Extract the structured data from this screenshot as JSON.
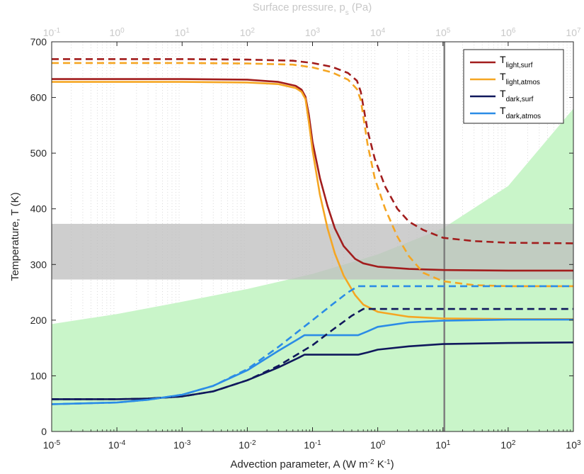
{
  "chart_data": {
    "type": "line",
    "x_axis": {
      "label_main": "Advection parameter, A (W m",
      "label_sup1": "-2",
      "label_mid": " K",
      "label_sup2": "-1",
      "label_end": ")",
      "scale": "log",
      "range": [
        1e-05,
        1000
      ],
      "ticks": [
        {
          "value": 1e-05,
          "base": "10",
          "exp": "-5"
        },
        {
          "value": 0.0001,
          "base": "10",
          "exp": "-4"
        },
        {
          "value": 0.001,
          "base": "10",
          "exp": "-3"
        },
        {
          "value": 0.01,
          "base": "10",
          "exp": "-2"
        },
        {
          "value": 0.1,
          "base": "10",
          "exp": "-1"
        },
        {
          "value": 1,
          "base": "10",
          "exp": "0"
        },
        {
          "value": 10,
          "base": "10",
          "exp": "1"
        },
        {
          "value": 100,
          "base": "10",
          "exp": "2"
        },
        {
          "value": 1000,
          "base": "10",
          "exp": "3"
        }
      ]
    },
    "x_axis_top": {
      "label_main": "Surface pressure, p",
      "label_sub": "s",
      "label_end": " (Pa)",
      "scale": "log",
      "range": [
        0.1,
        10000000
      ],
      "ticks": [
        {
          "value": 0.1,
          "base": "10",
          "exp": "-1"
        },
        {
          "value": 1,
          "base": "10",
          "exp": "0"
        },
        {
          "value": 10,
          "base": "10",
          "exp": "1"
        },
        {
          "value": 100,
          "base": "10",
          "exp": "2"
        },
        {
          "value": 1000,
          "base": "10",
          "exp": "3"
        },
        {
          "value": 10000,
          "base": "10",
          "exp": "4"
        },
        {
          "value": 100000,
          "base": "10",
          "exp": "5"
        },
        {
          "value": 1000000,
          "base": "10",
          "exp": "6"
        },
        {
          "value": 10000000,
          "base": "10",
          "exp": "7"
        }
      ]
    },
    "y_axis": {
      "label": "Temperature, T (K)",
      "range": [
        0,
        700
      ],
      "ticks": [
        0,
        100,
        200,
        300,
        400,
        500,
        600,
        700
      ]
    },
    "grid": "minor dotted vertical lines at top-axis minor ticks",
    "legend": {
      "placement": "top-right",
      "entries": [
        {
          "base": "T",
          "sub": "light,surf",
          "color": "#a21d1d"
        },
        {
          "base": "T",
          "sub": "light,atmos",
          "color": "#f5a623"
        },
        {
          "base": "T",
          "sub": "dark,surf",
          "color": "#10185c"
        },
        {
          "base": "T",
          "sub": "dark,atmos",
          "color": "#2b8ce6"
        }
      ]
    },
    "shaded_band": {
      "y_range": [
        273,
        373
      ],
      "color": "#bdbdbd"
    },
    "shaded_region": {
      "color": "#c9f5c9",
      "lower_boundary": "y = 0",
      "upper_boundary": [
        {
          "x": 1e-05,
          "y": 193
        },
        {
          "x": 0.0001,
          "y": 211
        },
        {
          "x": 0.001,
          "y": 233
        },
        {
          "x": 0.01,
          "y": 256
        },
        {
          "x": 0.1,
          "y": 283
        },
        {
          "x": 1,
          "y": 318
        },
        {
          "x": 10,
          "y": 365
        },
        {
          "x": 100,
          "y": 441
        },
        {
          "x": 1000,
          "y": 580
        }
      ]
    },
    "vertical_line": {
      "x": 10.5,
      "color": "#7f7f7f"
    },
    "series": [
      {
        "name_base": "T",
        "name_sub": "light,surf",
        "color": "#a21d1d",
        "style": "solid",
        "points": [
          {
            "x": 1e-05,
            "y": 633
          },
          {
            "x": 0.001,
            "y": 633
          },
          {
            "x": 0.01,
            "y": 632
          },
          {
            "x": 0.03,
            "y": 628
          },
          {
            "x": 0.055,
            "y": 621
          },
          {
            "x": 0.068,
            "y": 614
          },
          {
            "x": 0.078,
            "y": 601
          },
          {
            "x": 0.088,
            "y": 568
          },
          {
            "x": 0.1,
            "y": 520
          },
          {
            "x": 0.13,
            "y": 455
          },
          {
            "x": 0.17,
            "y": 405
          },
          {
            "x": 0.22,
            "y": 365
          },
          {
            "x": 0.3,
            "y": 333
          },
          {
            "x": 0.45,
            "y": 310
          },
          {
            "x": 0.6,
            "y": 302
          },
          {
            "x": 1,
            "y": 296
          },
          {
            "x": 3,
            "y": 292
          },
          {
            "x": 10,
            "y": 290
          },
          {
            "x": 100,
            "y": 289
          },
          {
            "x": 1000,
            "y": 289
          }
        ]
      },
      {
        "name_base": "T",
        "name_sub": "light,atmos",
        "color": "#f5a623",
        "style": "solid",
        "points": [
          {
            "x": 1e-05,
            "y": 628
          },
          {
            "x": 0.001,
            "y": 628
          },
          {
            "x": 0.01,
            "y": 627
          },
          {
            "x": 0.03,
            "y": 624
          },
          {
            "x": 0.055,
            "y": 617
          },
          {
            "x": 0.068,
            "y": 610
          },
          {
            "x": 0.078,
            "y": 597
          },
          {
            "x": 0.088,
            "y": 555
          },
          {
            "x": 0.1,
            "y": 505
          },
          {
            "x": 0.13,
            "y": 425
          },
          {
            "x": 0.17,
            "y": 365
          },
          {
            "x": 0.22,
            "y": 320
          },
          {
            "x": 0.3,
            "y": 280
          },
          {
            "x": 0.45,
            "y": 245
          },
          {
            "x": 0.6,
            "y": 228
          },
          {
            "x": 1,
            "y": 215
          },
          {
            "x": 3,
            "y": 206
          },
          {
            "x": 10,
            "y": 203
          },
          {
            "x": 100,
            "y": 202
          },
          {
            "x": 1000,
            "y": 202
          }
        ]
      },
      {
        "name_base": "T",
        "name_sub": "dark,surf",
        "color": "#10185c",
        "style": "solid",
        "points": [
          {
            "x": 1e-05,
            "y": 58
          },
          {
            "x": 0.0001,
            "y": 58
          },
          {
            "x": 0.0003,
            "y": 59
          },
          {
            "x": 0.001,
            "y": 63
          },
          {
            "x": 0.003,
            "y": 72
          },
          {
            "x": 0.01,
            "y": 92
          },
          {
            "x": 0.03,
            "y": 115
          },
          {
            "x": 0.06,
            "y": 132
          },
          {
            "x": 0.075,
            "y": 138
          },
          {
            "x": 0.2,
            "y": 138
          },
          {
            "x": 0.5,
            "y": 138
          },
          {
            "x": 0.7,
            "y": 142
          },
          {
            "x": 1,
            "y": 147
          },
          {
            "x": 3,
            "y": 153
          },
          {
            "x": 10,
            "y": 157
          },
          {
            "x": 100,
            "y": 159
          },
          {
            "x": 1000,
            "y": 160
          }
        ]
      },
      {
        "name_base": "T",
        "name_sub": "dark,atmos",
        "color": "#2b8ce6",
        "style": "solid",
        "points": [
          {
            "x": 1e-05,
            "y": 49
          },
          {
            "x": 0.0001,
            "y": 52
          },
          {
            "x": 0.0003,
            "y": 57
          },
          {
            "x": 0.001,
            "y": 66
          },
          {
            "x": 0.003,
            "y": 82
          },
          {
            "x": 0.01,
            "y": 110
          },
          {
            "x": 0.03,
            "y": 145
          },
          {
            "x": 0.06,
            "y": 166
          },
          {
            "x": 0.075,
            "y": 173
          },
          {
            "x": 0.2,
            "y": 173
          },
          {
            "x": 0.5,
            "y": 173
          },
          {
            "x": 0.7,
            "y": 180
          },
          {
            "x": 1,
            "y": 188
          },
          {
            "x": 3,
            "y": 196
          },
          {
            "x": 10,
            "y": 199
          },
          {
            "x": 100,
            "y": 201
          },
          {
            "x": 1000,
            "y": 201
          }
        ]
      },
      {
        "name_base": "T",
        "name_sub": "light,surf",
        "color": "#a21d1d",
        "style": "dashed",
        "points": [
          {
            "x": 1e-05,
            "y": 669
          },
          {
            "x": 0.001,
            "y": 669
          },
          {
            "x": 0.01,
            "y": 668
          },
          {
            "x": 0.05,
            "y": 666
          },
          {
            "x": 0.1,
            "y": 662
          },
          {
            "x": 0.2,
            "y": 655
          },
          {
            "x": 0.35,
            "y": 644
          },
          {
            "x": 0.48,
            "y": 630
          },
          {
            "x": 0.55,
            "y": 610
          },
          {
            "x": 0.7,
            "y": 540
          },
          {
            "x": 0.9,
            "y": 490
          },
          {
            "x": 1.3,
            "y": 440
          },
          {
            "x": 2,
            "y": 400
          },
          {
            "x": 3,
            "y": 377
          },
          {
            "x": 5,
            "y": 362
          },
          {
            "x": 10,
            "y": 348
          },
          {
            "x": 30,
            "y": 342
          },
          {
            "x": 100,
            "y": 339
          },
          {
            "x": 1000,
            "y": 338
          }
        ]
      },
      {
        "name_base": "T",
        "name_sub": "light,atmos",
        "color": "#f5a623",
        "style": "dashed",
        "points": [
          {
            "x": 1e-05,
            "y": 662
          },
          {
            "x": 0.001,
            "y": 662
          },
          {
            "x": 0.01,
            "y": 661
          },
          {
            "x": 0.05,
            "y": 659
          },
          {
            "x": 0.1,
            "y": 654
          },
          {
            "x": 0.2,
            "y": 645
          },
          {
            "x": 0.35,
            "y": 632
          },
          {
            "x": 0.48,
            "y": 615
          },
          {
            "x": 0.55,
            "y": 595
          },
          {
            "x": 0.7,
            "y": 515
          },
          {
            "x": 0.9,
            "y": 455
          },
          {
            "x": 1.3,
            "y": 400
          },
          {
            "x": 2,
            "y": 350
          },
          {
            "x": 3,
            "y": 315
          },
          {
            "x": 5,
            "y": 285
          },
          {
            "x": 10,
            "y": 270
          },
          {
            "x": 30,
            "y": 263
          },
          {
            "x": 100,
            "y": 261
          },
          {
            "x": 1000,
            "y": 261
          }
        ]
      },
      {
        "name_base": "T",
        "name_sub": "dark,surf",
        "color": "#10185c",
        "style": "dashed",
        "points": [
          {
            "x": 1e-05,
            "y": 58
          },
          {
            "x": 0.0001,
            "y": 58
          },
          {
            "x": 0.0003,
            "y": 59
          },
          {
            "x": 0.001,
            "y": 63
          },
          {
            "x": 0.003,
            "y": 72
          },
          {
            "x": 0.01,
            "y": 92
          },
          {
            "x": 0.03,
            "y": 118
          },
          {
            "x": 0.1,
            "y": 155
          },
          {
            "x": 0.2,
            "y": 182
          },
          {
            "x": 0.4,
            "y": 208
          },
          {
            "x": 0.6,
            "y": 220
          },
          {
            "x": 1,
            "y": 220
          },
          {
            "x": 10,
            "y": 220
          },
          {
            "x": 1000,
            "y": 220
          }
        ]
      },
      {
        "name_base": "T",
        "name_sub": "dark,atmos",
        "color": "#2b8ce6",
        "style": "dashed",
        "points": [
          {
            "x": 1e-05,
            "y": 49
          },
          {
            "x": 0.0001,
            "y": 52
          },
          {
            "x": 0.0003,
            "y": 57
          },
          {
            "x": 0.001,
            "y": 66
          },
          {
            "x": 0.003,
            "y": 82
          },
          {
            "x": 0.01,
            "y": 112
          },
          {
            "x": 0.03,
            "y": 152
          },
          {
            "x": 0.1,
            "y": 200
          },
          {
            "x": 0.2,
            "y": 228
          },
          {
            "x": 0.35,
            "y": 250
          },
          {
            "x": 0.5,
            "y": 261
          },
          {
            "x": 1,
            "y": 261
          },
          {
            "x": 10,
            "y": 261
          },
          {
            "x": 1000,
            "y": 261
          }
        ]
      }
    ]
  }
}
